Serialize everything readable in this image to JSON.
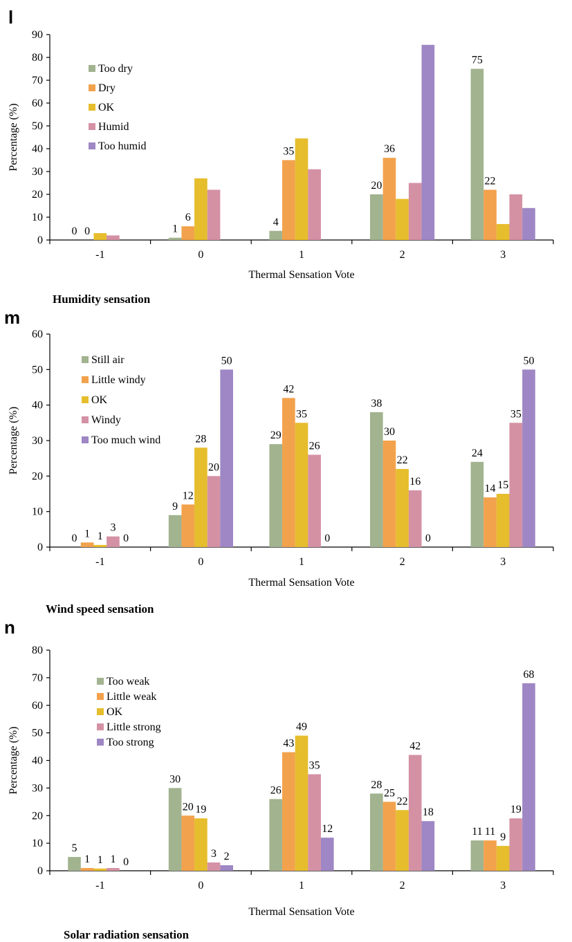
{
  "colors": [
    "#a2b38f",
    "#f2a24c",
    "#e6bd2c",
    "#d491a4",
    "#9e87c4"
  ],
  "chart_data": [
    {
      "type": "bar",
      "panel": "l",
      "caption": "Humidity sensation",
      "xlabel": "Thermal Sensation Vote",
      "ylabel": "Percentage (%)",
      "ylim": [
        0,
        90
      ],
      "yticks": [
        0,
        10,
        20,
        30,
        40,
        50,
        60,
        70,
        80,
        90
      ],
      "categories": [
        "-1",
        "0",
        "1",
        "2",
        "3"
      ],
      "legend_position": "upper-left",
      "series": [
        {
          "name": "Too dry",
          "values": [
            0,
            1,
            4,
            20,
            75
          ],
          "labels": [
            "0",
            "1",
            "4",
            "20",
            "75"
          ]
        },
        {
          "name": "Dry",
          "values": [
            0,
            6,
            35,
            36,
            22
          ],
          "labels": [
            "0",
            "6",
            "35",
            "36",
            "22"
          ]
        },
        {
          "name": "OK",
          "values": [
            3,
            27,
            44.5,
            18,
            7
          ],
          "labels": [
            "",
            "",
            "",
            "",
            ""
          ]
        },
        {
          "name": "Humid",
          "values": [
            2,
            22,
            31,
            25,
            20
          ],
          "labels": [
            "",
            "",
            "",
            "",
            ""
          ]
        },
        {
          "name": "Too humid",
          "values": [
            0,
            0,
            0,
            85.5,
            14
          ],
          "labels": [
            "",
            "",
            "",
            "",
            ""
          ]
        }
      ]
    },
    {
      "type": "bar",
      "panel": "m",
      "caption": "Wind speed sensation",
      "xlabel": "Thermal Sensation Vote",
      "ylabel": "Percentage (%)",
      "ylim": [
        0,
        60
      ],
      "yticks": [
        0,
        10,
        20,
        30,
        40,
        50,
        60
      ],
      "categories": [
        "-1",
        "0",
        "1",
        "2",
        "3"
      ],
      "legend_position": "upper-left",
      "series": [
        {
          "name": "Still air",
          "values": [
            0,
            9,
            29,
            38,
            24
          ],
          "labels": [
            "0",
            "9",
            "29",
            "38",
            "24"
          ]
        },
        {
          "name": "Little windy",
          "values": [
            1.3,
            12,
            42,
            30,
            14
          ],
          "labels": [
            "1",
            "12",
            "42",
            "30",
            "14"
          ]
        },
        {
          "name": "OK",
          "values": [
            0.6,
            28,
            35,
            22,
            15
          ],
          "labels": [
            "1",
            "28",
            "35",
            "22",
            "15"
          ]
        },
        {
          "name": "Windy",
          "values": [
            3,
            20,
            26,
            16,
            35
          ],
          "labels": [
            "3",
            "20",
            "26",
            "16",
            "35"
          ]
        },
        {
          "name": "Too much wind",
          "values": [
            0,
            50,
            0,
            0,
            50
          ],
          "labels": [
            "0",
            "50",
            "0",
            "0",
            "50"
          ]
        }
      ]
    },
    {
      "type": "bar",
      "panel": "n",
      "caption": "Solar radiation sensation",
      "xlabel": "Thermal Sensation Vote",
      "ylabel": "Percentage (%)",
      "ylim": [
        0,
        80
      ],
      "yticks": [
        0,
        10,
        20,
        30,
        40,
        50,
        60,
        70,
        80
      ],
      "categories": [
        "-1",
        "0",
        "1",
        "2",
        "3"
      ],
      "legend_position": "upper-left",
      "series": [
        {
          "name": "Too weak",
          "values": [
            5,
            30,
            26,
            28,
            11
          ],
          "labels": [
            "5",
            "30",
            "26",
            "28",
            "11"
          ]
        },
        {
          "name": "Little weak",
          "values": [
            1,
            20,
            43,
            25,
            11
          ],
          "labels": [
            "1",
            "20",
            "43",
            "25",
            "11"
          ]
        },
        {
          "name": "OK",
          "values": [
            0.8,
            19,
            49,
            22,
            9
          ],
          "labels": [
            "1",
            "19",
            "49",
            "22",
            "9"
          ]
        },
        {
          "name": "Little strong",
          "values": [
            1,
            3,
            35,
            42,
            19
          ],
          "labels": [
            "1",
            "3",
            "35",
            "42",
            "19"
          ]
        },
        {
          "name": "Too strong",
          "values": [
            0,
            2,
            12,
            18,
            68
          ],
          "labels": [
            "0",
            "2",
            "12",
            "18",
            "68"
          ]
        }
      ]
    }
  ]
}
